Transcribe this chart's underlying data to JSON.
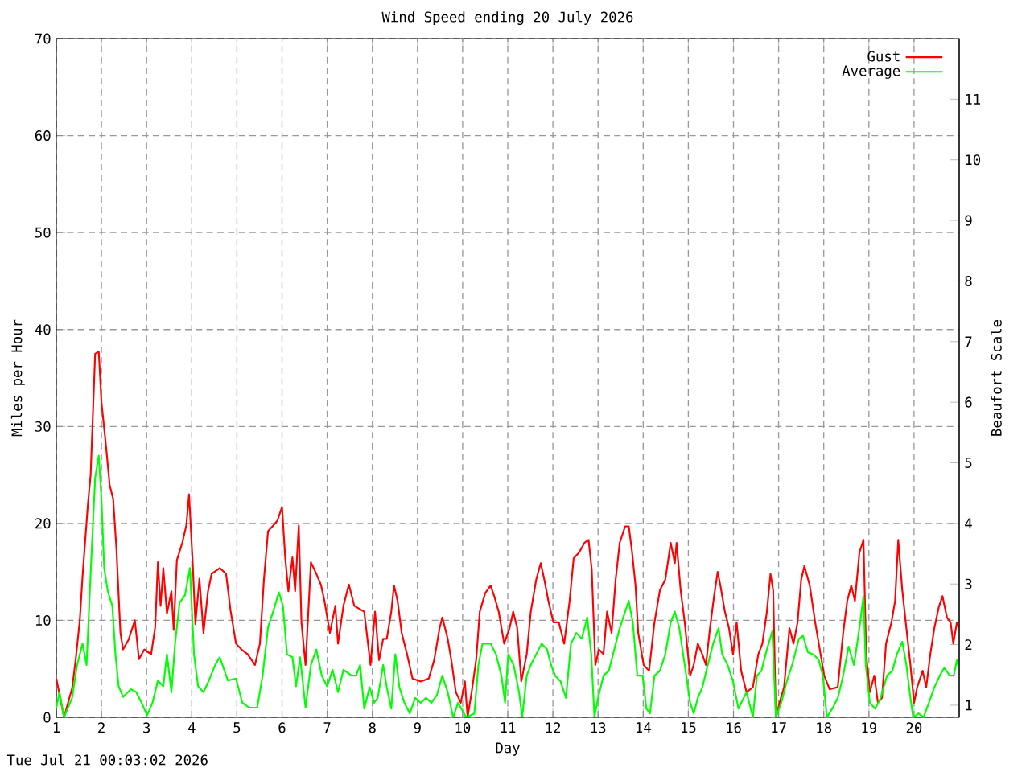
{
  "chart_data": {
    "type": "line",
    "title": "Wind Speed ending 20 July 2026",
    "xlabel": "Day",
    "ylabel": "Miles per Hour",
    "y2label": "Beaufort Scale",
    "annotations": [
      "Tue Jul 21 00:03:02 2026"
    ],
    "y2lim": [
      0.8,
      12
    ],
    "y2ticks": [
      1,
      2,
      3,
      4,
      5,
      6,
      7,
      8,
      9,
      10,
      11
    ],
    "xlim": [
      1,
      21
    ],
    "xticks": [
      1,
      2,
      3,
      4,
      5,
      6,
      7,
      8,
      9,
      10,
      11,
      12,
      13,
      14,
      15,
      16,
      17,
      18,
      19,
      20
    ],
    "ylim": [
      0,
      70
    ],
    "yticks": [
      0,
      10,
      20,
      30,
      40,
      50,
      60,
      70
    ],
    "grid": true,
    "legend": "top right",
    "marker": "none",
    "line_style": "solid",
    "series": [
      {
        "name": "Gust",
        "color": "#ff0000",
        "x": [
          1.0,
          1.17,
          1.35,
          1.43,
          1.52,
          1.58,
          1.7,
          1.76,
          1.86,
          1.94,
          2.0,
          2.1,
          2.18,
          2.26,
          2.33,
          2.42,
          2.48,
          2.6,
          2.74,
          2.83,
          2.95,
          3.1,
          3.19,
          3.25,
          3.31,
          3.37,
          3.45,
          3.55,
          3.6,
          3.67,
          3.79,
          3.88,
          3.94,
          4.02,
          4.08,
          4.17,
          4.26,
          4.36,
          4.44,
          4.62,
          4.76,
          4.86,
          4.98,
          5.1,
          5.24,
          5.4,
          5.51,
          5.6,
          5.69,
          5.81,
          5.9,
          6.0,
          6.07,
          6.14,
          6.23,
          6.29,
          6.37,
          6.43,
          6.52,
          6.64,
          6.76,
          6.86,
          6.94,
          7.06,
          7.18,
          7.24,
          7.36,
          7.48,
          7.6,
          7.82,
          7.96,
          8.06,
          8.15,
          8.24,
          8.32,
          8.42,
          8.48,
          8.56,
          8.65,
          8.77,
          8.89,
          9.07,
          9.25,
          9.37,
          9.49,
          9.55,
          9.67,
          9.75,
          9.85,
          9.96,
          10.05,
          10.11,
          10.2,
          10.3,
          10.38,
          10.5,
          10.62,
          10.7,
          10.8,
          10.92,
          11.04,
          11.12,
          11.21,
          11.3,
          11.42,
          11.51,
          11.63,
          11.73,
          11.81,
          11.9,
          12.01,
          12.13,
          12.25,
          12.37,
          12.46,
          12.58,
          12.7,
          12.79,
          12.86,
          12.94,
          13.02,
          13.12,
          13.2,
          13.3,
          13.39,
          13.48,
          13.6,
          13.68,
          13.75,
          13.83,
          13.89,
          14.01,
          14.13,
          14.25,
          14.37,
          14.49,
          14.61,
          14.7,
          14.74,
          14.83,
          14.92,
          15.04,
          15.12,
          15.21,
          15.31,
          15.39,
          15.48,
          15.57,
          15.65,
          15.71,
          15.81,
          15.9,
          15.99,
          16.07,
          16.17,
          16.29,
          16.43,
          16.55,
          16.64,
          16.74,
          16.82,
          16.88,
          16.94,
          17.02,
          17.12,
          17.24,
          17.33,
          17.42,
          17.5,
          17.57,
          17.69,
          17.81,
          17.93,
          18.01,
          18.13,
          18.31,
          18.43,
          18.52,
          18.61,
          18.69,
          18.79,
          18.88,
          18.94,
          19.02,
          19.12,
          19.2,
          19.29,
          19.38,
          19.5,
          19.58,
          19.65,
          19.74,
          19.83,
          19.92,
          20.0,
          20.07,
          20.19,
          20.27,
          20.36,
          20.45,
          20.55,
          20.63,
          20.73,
          20.81,
          20.87,
          20.95,
          20.99
        ],
        "values": [
          4,
          0,
          3,
          6,
          10,
          14.5,
          22,
          25,
          37.5,
          37.7,
          32.5,
          28,
          24,
          22.5,
          17.5,
          8.7,
          7,
          8,
          10,
          6,
          7,
          6.5,
          9.3,
          16,
          11.5,
          15.4,
          10.7,
          13,
          9,
          16.2,
          18,
          19.8,
          23,
          16,
          9.6,
          14.3,
          8.7,
          13,
          14.8,
          15.4,
          14.8,
          11,
          7.6,
          7,
          6.5,
          5.4,
          7.6,
          14.3,
          19.2,
          19.8,
          20.3,
          21.7,
          16.5,
          13,
          16.5,
          13,
          19.8,
          9.8,
          5.4,
          16,
          14.8,
          13.7,
          12,
          8.7,
          11.5,
          7.6,
          11.5,
          13.7,
          11.5,
          10.9,
          5.4,
          10.9,
          5.9,
          8.1,
          8.1,
          10.9,
          13.6,
          12,
          8.7,
          6.5,
          4,
          3.7,
          4,
          5.9,
          9.2,
          10.3,
          8.1,
          5.9,
          2.6,
          1.5,
          3.7,
          0,
          2.6,
          5.9,
          10.9,
          12.8,
          13.6,
          12.5,
          10.9,
          7.6,
          9.2,
          10.9,
          9.2,
          3.7,
          6.5,
          10.9,
          14.2,
          15.9,
          14.2,
          12,
          9.8,
          9.8,
          7.6,
          12,
          16.4,
          17,
          18,
          18.3,
          15.3,
          5.4,
          7,
          6.5,
          10.9,
          8.7,
          14.2,
          18,
          19.7,
          19.7,
          17.2,
          13.6,
          8.7,
          5.4,
          4.8,
          9.8,
          13.1,
          14.2,
          18,
          15.9,
          18,
          13.1,
          9.8,
          4.3,
          5.4,
          7.6,
          6.5,
          5.4,
          9.2,
          12.5,
          15,
          13.6,
          10.9,
          9.2,
          6.5,
          9.8,
          4.8,
          2.6,
          3.1,
          6.5,
          7.6,
          10.9,
          14.8,
          13.1,
          0,
          1.5,
          3.1,
          9.2,
          7.6,
          9.8,
          14.2,
          15.6,
          13.6,
          9.8,
          6.5,
          4.3,
          2.9,
          3.1,
          8.7,
          12,
          13.6,
          12,
          17,
          18.3,
          6.5,
          2.6,
          4.3,
          1.5,
          2,
          7.6,
          9.8,
          12,
          18.3,
          13.1,
          9.2,
          5.4,
          1.5,
          3.1,
          4.8,
          3.1,
          6.5,
          9.2,
          11.4,
          12.5,
          10.3,
          9.8,
          7.6,
          9.8,
          9.2
        ]
      },
      {
        "name": "Average",
        "color": "#00ff00",
        "x": [
          1.0,
          1.07,
          1.17,
          1.35,
          1.46,
          1.58,
          1.67,
          1.76,
          1.86,
          1.94,
          2.0,
          2.06,
          2.14,
          2.24,
          2.31,
          2.38,
          2.48,
          2.65,
          2.77,
          2.89,
          3.01,
          3.13,
          3.25,
          3.37,
          3.45,
          3.55,
          3.63,
          3.73,
          3.85,
          3.96,
          4.05,
          4.14,
          4.26,
          4.38,
          4.52,
          4.62,
          4.8,
          4.98,
          5.12,
          5.27,
          5.45,
          5.57,
          5.69,
          5.81,
          5.93,
          6.02,
          6.11,
          6.23,
          6.31,
          6.4,
          6.52,
          6.64,
          6.76,
          6.88,
          7.0,
          7.12,
          7.24,
          7.36,
          7.54,
          7.64,
          7.73,
          7.82,
          7.94,
          8.04,
          8.12,
          8.24,
          8.32,
          8.42,
          8.51,
          8.6,
          8.71,
          8.83,
          8.95,
          9.07,
          9.19,
          9.31,
          9.43,
          9.55,
          9.67,
          9.79,
          9.9,
          10.08,
          10.26,
          10.35,
          10.44,
          10.62,
          10.74,
          10.86,
          10.94,
          11.01,
          11.13,
          11.25,
          11.32,
          11.42,
          11.51,
          11.63,
          11.75,
          11.87,
          11.96,
          12.05,
          12.17,
          12.29,
          12.4,
          12.52,
          12.64,
          12.76,
          12.85,
          12.92,
          13.0,
          13.12,
          13.24,
          13.36,
          13.48,
          13.6,
          13.68,
          13.77,
          13.87,
          13.99,
          14.07,
          14.15,
          14.25,
          14.37,
          14.49,
          14.61,
          14.7,
          14.8,
          14.92,
          15.04,
          15.12,
          15.21,
          15.31,
          15.43,
          15.55,
          15.67,
          15.75,
          15.87,
          15.99,
          16.11,
          16.29,
          16.43,
          16.52,
          16.62,
          16.74,
          16.86,
          16.94,
          17.06,
          17.18,
          17.3,
          17.45,
          17.54,
          17.65,
          17.77,
          17.89,
          17.98,
          18.07,
          18.19,
          18.31,
          18.43,
          18.55,
          18.67,
          18.79,
          18.88,
          18.93,
          19.02,
          19.14,
          19.26,
          19.4,
          19.52,
          19.62,
          19.74,
          19.83,
          19.92,
          19.98,
          20.1,
          20.21,
          20.33,
          20.45,
          20.57,
          20.67,
          20.79,
          20.88,
          20.95,
          20.99
        ],
        "values": [
          1,
          2.6,
          0,
          2,
          5.4,
          7.6,
          5.4,
          14.8,
          24.7,
          27,
          22.5,
          15.4,
          13,
          11.5,
          6.5,
          3.2,
          2.1,
          2.9,
          2.6,
          1.5,
          0.2,
          1.5,
          3.8,
          3.2,
          6.5,
          2.6,
          7.6,
          11.8,
          12.6,
          15.4,
          6.5,
          3.2,
          2.6,
          3.8,
          5.4,
          6.2,
          3.8,
          4,
          1.5,
          1,
          1,
          4.3,
          9.3,
          11,
          12.9,
          11.5,
          6.5,
          6.2,
          3.2,
          6.2,
          1,
          5.4,
          7,
          4.3,
          3.2,
          4.9,
          2.6,
          4.9,
          4.3,
          4.3,
          5.4,
          0.9,
          3.1,
          1.5,
          2,
          5.4,
          3.1,
          0.9,
          6.5,
          3.1,
          1.5,
          0.4,
          2,
          1.5,
          2,
          1.5,
          2.3,
          4.3,
          2.6,
          0,
          1.5,
          0,
          0.4,
          5.4,
          7.6,
          7.6,
          6.5,
          4.3,
          1.5,
          6.5,
          5.4,
          2.6,
          0,
          4.3,
          5.4,
          6.5,
          7.6,
          7,
          5.4,
          4.3,
          3.7,
          2,
          7.6,
          8.7,
          8.1,
          10.3,
          6.5,
          0,
          2,
          4.3,
          4.8,
          7,
          9.2,
          10.9,
          12,
          9.8,
          4.3,
          4.3,
          0.9,
          0.4,
          4.3,
          4.8,
          6.5,
          9.8,
          10.9,
          9.2,
          5.4,
          1.5,
          0.4,
          2,
          3.1,
          5.4,
          7.6,
          9.2,
          6.5,
          5.4,
          3.7,
          0.9,
          2.6,
          0,
          4.3,
          4.8,
          7,
          8.9,
          0,
          1.5,
          3.7,
          5.4,
          8.1,
          8.4,
          6.7,
          6.5,
          5.9,
          4.3,
          0,
          0.9,
          2,
          4.3,
          7.3,
          5.4,
          9.2,
          12.5,
          5.4,
          1.5,
          0.9,
          2,
          4.3,
          4.8,
          6.5,
          7.8,
          5.4,
          2,
          0,
          0.4,
          0,
          1.5,
          3.1,
          4.3,
          5.1,
          4.3,
          4.3,
          5.9,
          5.1
        ]
      }
    ]
  }
}
